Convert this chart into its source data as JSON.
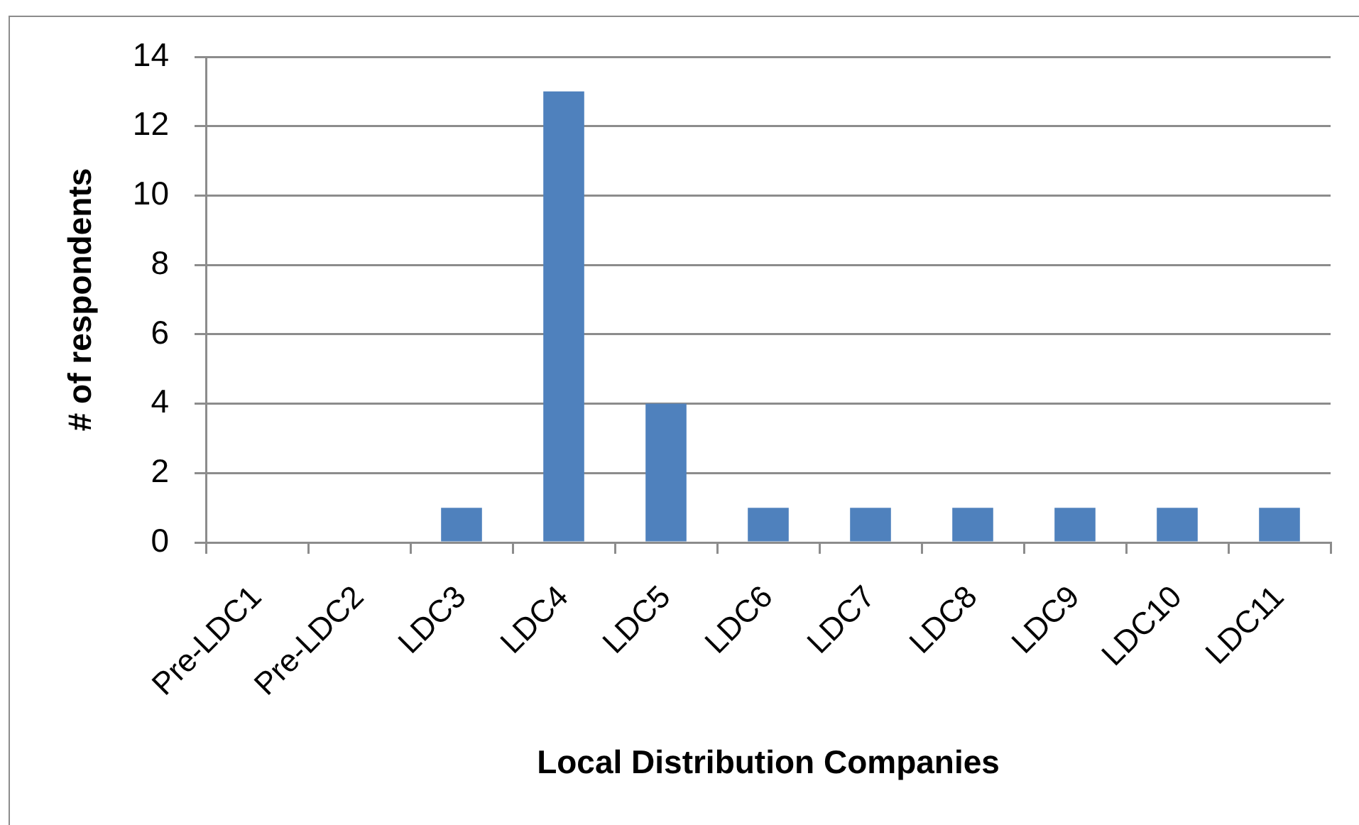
{
  "chart_data": {
    "type": "bar",
    "xlabel": "Local Distribution Companies",
    "ylabel": "# of respondents",
    "categories": [
      "Pre-LDC1",
      "Pre-LDC2",
      "LDC3",
      "LDC4",
      "LDC5",
      "LDC6",
      "LDC7",
      "LDC8",
      "LDC9",
      "LDC10",
      "LDC11"
    ],
    "values": [
      0,
      0,
      1,
      13,
      4,
      1,
      1,
      1,
      1,
      1,
      1
    ],
    "color": "#4f81bd",
    "ylim": [
      0,
      14
    ],
    "yticks": [
      0,
      2,
      4,
      6,
      8,
      10,
      12,
      14
    ],
    "grid": "y"
  }
}
